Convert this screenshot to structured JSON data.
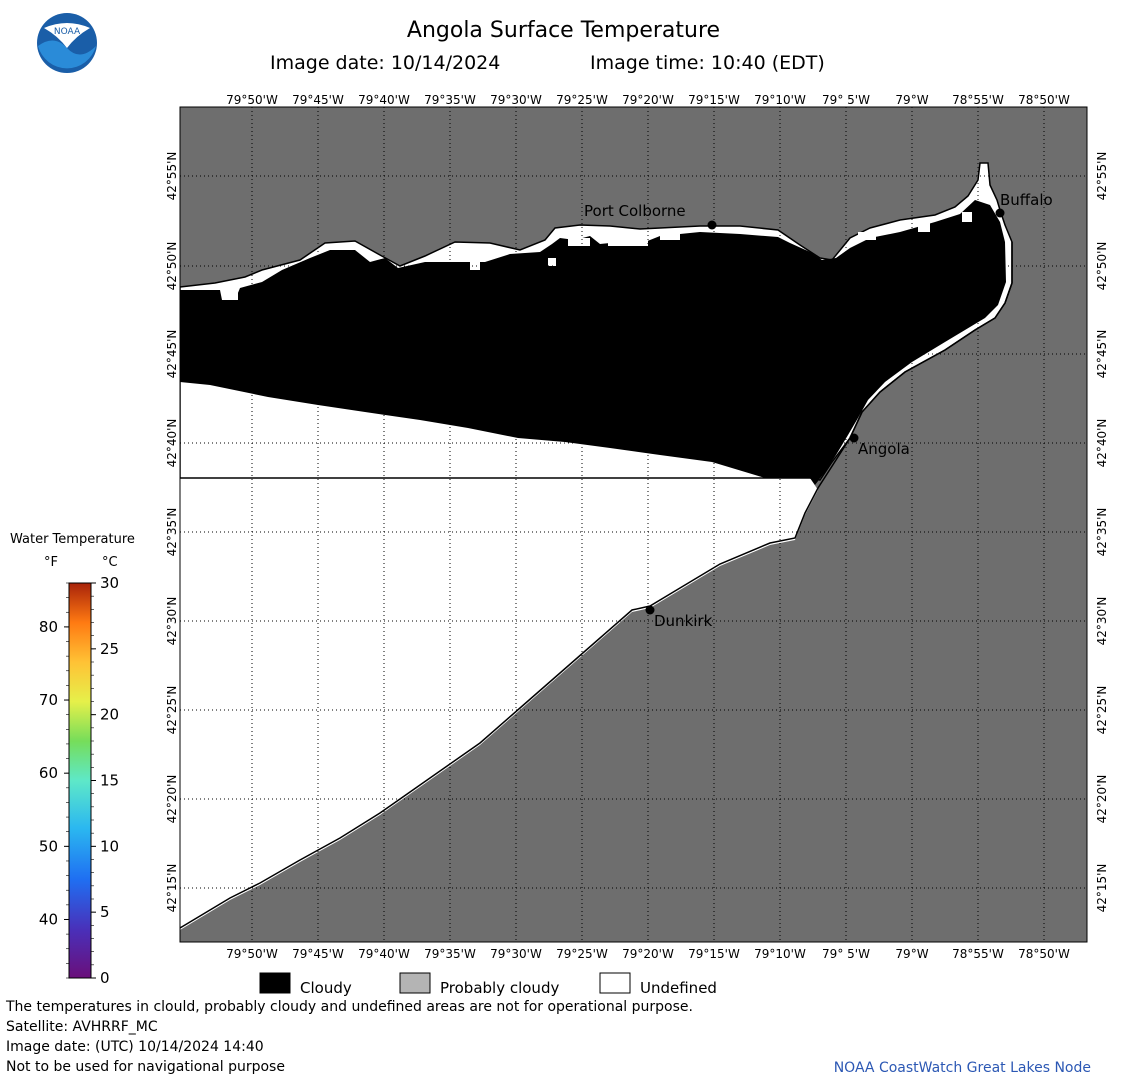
{
  "header": {
    "title": "Angola Surface Temperature",
    "image_date": "Image date: 10/14/2024",
    "image_time": "Image time: 10:40 (EDT)"
  },
  "logo": {
    "text": "NOAA",
    "icon": "noaa-logo"
  },
  "map": {
    "colors": {
      "land": "#6e6e6e",
      "cloudy": "#000000",
      "undefined": "#ffffff"
    },
    "lon_labels": [
      "79°50'W",
      "79°45'W",
      "79°40'W",
      "79°35'W",
      "79°30'W",
      "79°25'W",
      "79°20'W",
      "79°15'W",
      "79°10'W",
      "79° 5'W",
      "79°W",
      "78°55'W",
      "78°50'W"
    ],
    "lat_labels": [
      "42°55'N",
      "42°50'N",
      "42°45'N",
      "42°40'N",
      "42°35'N",
      "42°30'N",
      "42°25'N",
      "42°20'N",
      "42°15'N"
    ],
    "places": [
      {
        "name": "Port Colborne"
      },
      {
        "name": "Buffalo"
      },
      {
        "name": "Angola"
      },
      {
        "name": "Dunkirk"
      }
    ]
  },
  "colorbar": {
    "title": "Water Temperature",
    "unit_f": "°F",
    "unit_c": "°C",
    "f_ticks": [
      "80",
      "70",
      "60",
      "50",
      "40"
    ],
    "c_ticks": [
      "30",
      "25",
      "20",
      "15",
      "10",
      "5",
      "0"
    ]
  },
  "key": {
    "cloudy": "Cloudy",
    "probably_cloudy": "Probably cloudy",
    "undefined": "Undefined"
  },
  "footer": {
    "line1": "The temperatures in clould, probably cloudy and undefined areas are not for operational purpose.",
    "line2": "Satellite: AVHRRF_MC",
    "line3": "Image date: (UTC) 10/14/2024  14:40",
    "line4": "Not to be used for navigational purpose",
    "credit": "NOAA CoastWatch Great Lakes Node"
  }
}
